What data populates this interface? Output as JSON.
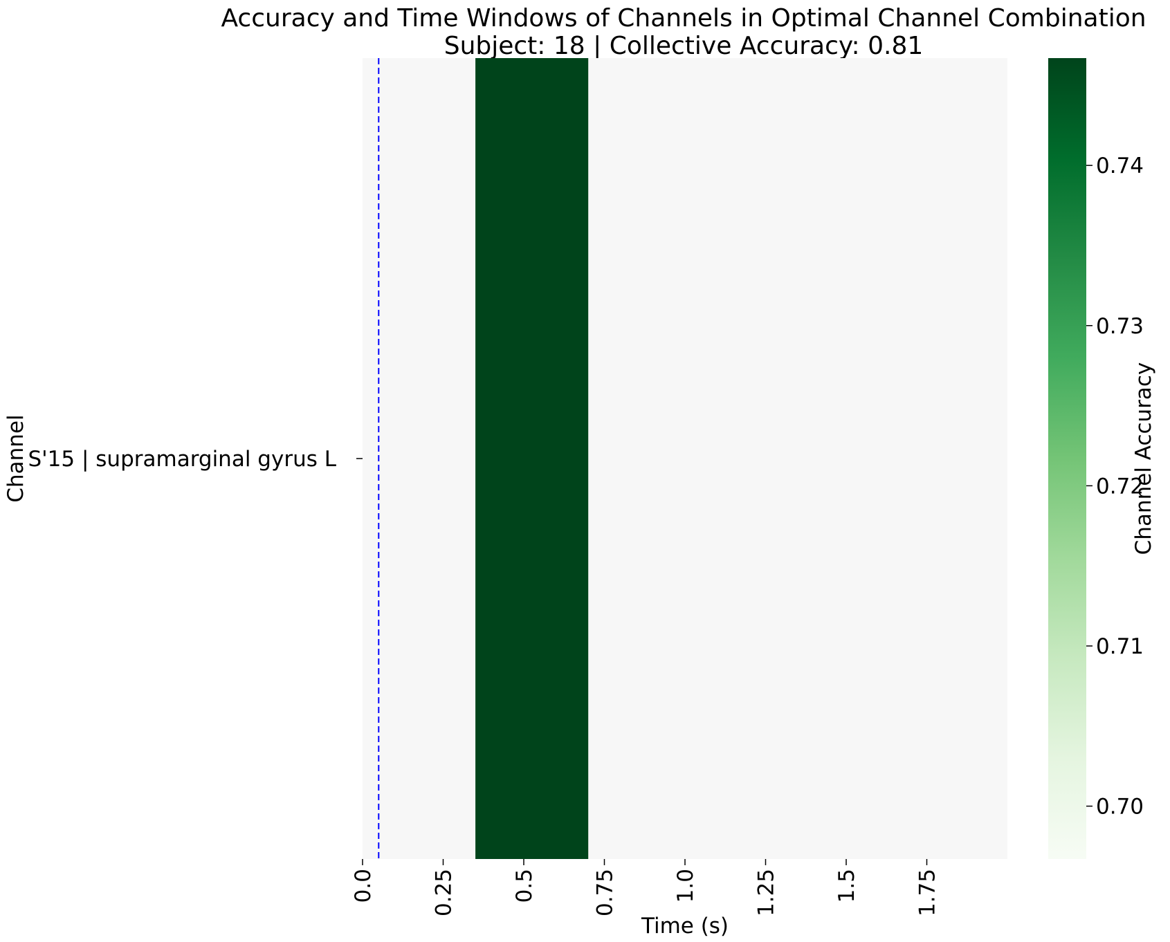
{
  "chart_data": {
    "type": "heatmap",
    "title": "Accuracy and Time Windows of Channels in Optimal Channel Combination",
    "subtitle": "Subject: 18 | Collective Accuracy: 0.81",
    "xlabel": "Time (s)",
    "ylabel": "Channel",
    "x_range": [
      0.0,
      2.0
    ],
    "x_ticks": [
      {
        "value": 0.0,
        "label": "0.0"
      },
      {
        "value": 0.25,
        "label": "0.25"
      },
      {
        "value": 0.5,
        "label": "0.5"
      },
      {
        "value": 0.75,
        "label": "0.75"
      },
      {
        "value": 1.0,
        "label": "1.0"
      },
      {
        "value": 1.25,
        "label": "1.25"
      },
      {
        "value": 1.5,
        "label": "1.5"
      },
      {
        "value": 1.75,
        "label": "1.75"
      }
    ],
    "rows": [
      {
        "channel": "S'15 | supramarginal gyrus L",
        "windows": [
          {
            "start": 0.35,
            "end": 0.7,
            "accuracy": 0.747
          }
        ]
      }
    ],
    "background_color": "#f7f7f7",
    "reference_line": {
      "x": 0.05,
      "color": "#0000ff",
      "style": "dashed"
    },
    "colorbar": {
      "label": "Channel Accuracy",
      "colormap": "Greens",
      "range": [
        0.6967,
        0.7467
      ],
      "ticks": [
        {
          "value": 0.7,
          "label": "0.70"
        },
        {
          "value": 0.71,
          "label": "0.71"
        },
        {
          "value": 0.72,
          "label": "0.72"
        },
        {
          "value": 0.73,
          "label": "0.73"
        },
        {
          "value": 0.74,
          "label": "0.74"
        }
      ]
    }
  }
}
